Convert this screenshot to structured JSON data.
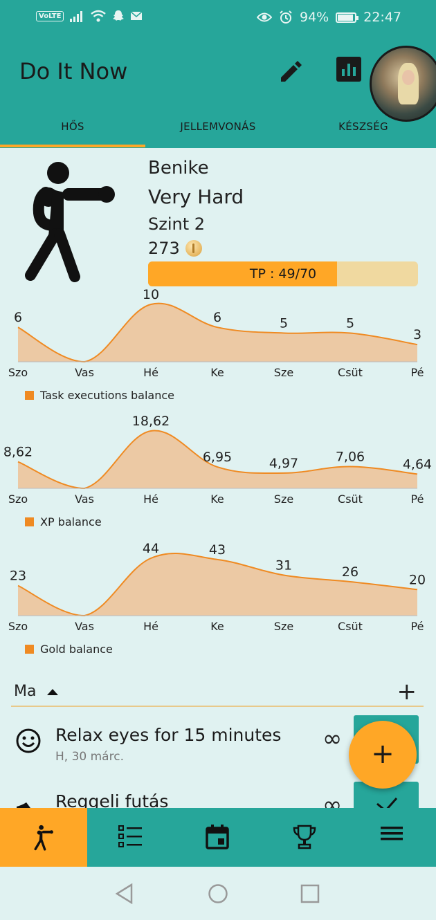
{
  "status_bar": {
    "volte": "VoLTE",
    "battery": "94%",
    "time": "22:47",
    "icons": [
      "signal-icon",
      "wifi-icon",
      "snapchat-icon",
      "mail-icon",
      "eye-icon",
      "alarm-icon",
      "battery-icon"
    ]
  },
  "app": {
    "title": "Do It Now",
    "actions": [
      "edit-icon",
      "stats-icon"
    ]
  },
  "tabs": [
    {
      "label": "HŐS",
      "active": true
    },
    {
      "label": "JELLEMVONÁS",
      "active": false
    },
    {
      "label": "KÉSZSÉG",
      "active": false
    }
  ],
  "hero": {
    "name": "Benike",
    "difficulty": "Very Hard",
    "level": "Szint 2",
    "gold": "273",
    "tp_text": "TP : 49/70",
    "tp_fraction": 0.7
  },
  "chart_data": [
    {
      "type": "area",
      "categories": [
        "Szo",
        "Vas",
        "Hé",
        "Ke",
        "Sze",
        "Csüt",
        "Pé"
      ],
      "values": [
        6,
        0,
        10,
        6,
        5,
        5,
        3
      ],
      "value_labels": [
        "6",
        "",
        "10",
        "6",
        "5",
        "5",
        "3"
      ],
      "legend": "Task executions balance",
      "ylim": [
        0,
        10
      ],
      "color": "#ef8a22",
      "fill": "#ecc9a4"
    },
    {
      "type": "area",
      "categories": [
        "Szo",
        "Vas",
        "Hé",
        "Ke",
        "Sze",
        "Csüt",
        "Pé"
      ],
      "values": [
        8.62,
        0,
        18.62,
        6.95,
        4.97,
        7.06,
        4.64
      ],
      "value_labels": [
        "8,62",
        "",
        "18,62",
        "6,95",
        "4,97",
        "7,06",
        "4,64"
      ],
      "legend": "XP balance",
      "ylim": [
        0,
        18.62
      ],
      "color": "#ef8a22",
      "fill": "#ecc9a4"
    },
    {
      "type": "area",
      "categories": [
        "Szo",
        "Vas",
        "Hé",
        "Ke",
        "Sze",
        "Csüt",
        "Pé"
      ],
      "values": [
        23,
        0,
        44,
        43,
        31,
        26,
        20
      ],
      "value_labels": [
        "23",
        "",
        "44",
        "43",
        "31",
        "26",
        "20"
      ],
      "legend": "Gold balance",
      "ylim": [
        0,
        44
      ],
      "color": "#ef8a22",
      "fill": "#ecc9a4"
    }
  ],
  "today": {
    "label": "Ma",
    "add": "+"
  },
  "tasks": [
    {
      "title": "Relax eyes for 15 minutes",
      "date": "H, 30 márc.",
      "repeat": "∞",
      "icon": "smiley-icon"
    },
    {
      "title": "Reggeli futás",
      "date": "",
      "repeat": "∞",
      "icon": "shoe-icon"
    }
  ],
  "fab": {
    "label": "+"
  },
  "bottom_nav": [
    "hero-icon",
    "tasks-list-icon",
    "calendar-icon",
    "trophy-icon",
    "menu-icon"
  ]
}
